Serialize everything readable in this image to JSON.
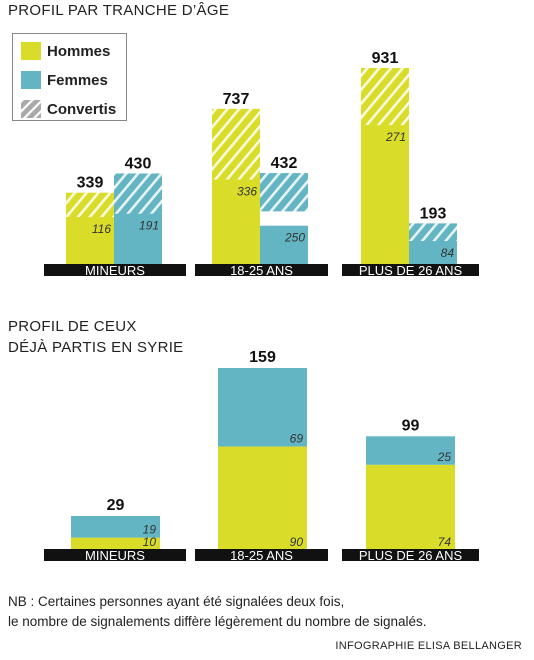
{
  "colors": {
    "hommes": "#d9dd2a",
    "femmes": "#64b5c4",
    "convertis": "#a9a9a9",
    "axis_band": "#111111",
    "text": "#111111"
  },
  "legend": {
    "items": [
      {
        "key": "hommes",
        "label": "Hommes",
        "icon": "solid-yellow-swatch"
      },
      {
        "key": "femmes",
        "label": "Femmes",
        "icon": "solid-teal-swatch"
      },
      {
        "key": "convertis",
        "label": "Convertis",
        "icon": "hatched-gray-swatch"
      }
    ]
  },
  "chart_data": [
    {
      "type": "bar",
      "title": "PROFIL PAR TRANCHE D’ÂGE",
      "categories": [
        "MINEURS",
        "18-25 ANS",
        "PLUS DE 26 ANS"
      ],
      "ylim": [
        0,
        931
      ],
      "series": [
        {
          "name": "Hommes",
          "values": [
            339,
            737,
            931
          ],
          "convertis": [
            116,
            336,
            271
          ]
        },
        {
          "name": "Femmes",
          "values": [
            430,
            432,
            193
          ],
          "convertis": [
            191,
            250,
            84
          ]
        }
      ],
      "grid": false
    },
    {
      "type": "bar",
      "stacked": true,
      "title": "PROFIL DE CEUX\nDÉJÀ PARTIS EN SYRIE",
      "categories": [
        "MINEURS",
        "18-25 ANS",
        "PLUS DE 26 ANS"
      ],
      "totals": [
        29,
        159,
        99
      ],
      "ylim": [
        0,
        159
      ],
      "series": [
        {
          "name": "Hommes",
          "values": [
            10,
            90,
            74
          ]
        },
        {
          "name": "Femmes",
          "values": [
            19,
            69,
            25
          ]
        }
      ],
      "grid": false
    }
  ],
  "note": {
    "line1": "NB : Certaines personnes ayant été signalées deux fois,",
    "line2": "le nombre de signalements diffère légèrement du nombre de signalés."
  },
  "credit": "INFOGRAPHIE ELISA BELLANGER"
}
